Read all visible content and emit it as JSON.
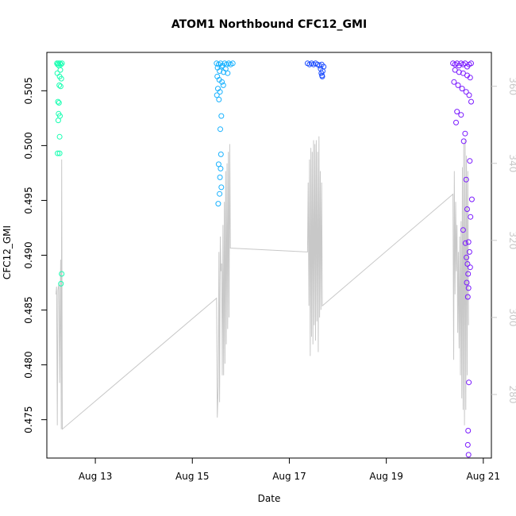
{
  "chart_data": {
    "type": "scatter",
    "title": "ATOM1 Northbound CFC12_GMI",
    "xlabel": "Date",
    "ylabel": "CFC12_GMI",
    "xlim": [
      "2016-08-12T00:00",
      "2016-08-21T04:00"
    ],
    "ylim": [
      0.4715,
      0.5085
    ],
    "x_ticks": [
      "Aug 13",
      "Aug 15",
      "Aug 17",
      "Aug 19",
      "Aug 21"
    ],
    "x_tick_dates": [
      "2016-08-13",
      "2016-08-15",
      "2016-08-17",
      "2016-08-19",
      "2016-08-21"
    ],
    "y_ticks": [
      "0.475",
      "0.480",
      "0.485",
      "0.490",
      "0.495",
      "0.500",
      "0.505"
    ],
    "y_tick_values": [
      0.475,
      0.48,
      0.485,
      0.49,
      0.495,
      0.5,
      0.505
    ],
    "y2_ticks": [
      "280",
      "300",
      "320",
      "340",
      "360"
    ],
    "y2_tick_values": [
      280,
      300,
      320,
      340,
      360
    ],
    "y2lim": [
      263.5,
      368.8
    ],
    "grid": false,
    "line_color": "#c8c8c8",
    "series": [
      {
        "color": "#19ffb2",
        "points": [
          [
            "2016-08-12T05:00",
            0.5075
          ],
          [
            "2016-08-12T05:20",
            0.5074
          ],
          [
            "2016-08-12T05:40",
            0.5075
          ],
          [
            "2016-08-12T06:00",
            0.5073
          ],
          [
            "2016-08-12T06:30",
            0.5075
          ],
          [
            "2016-08-12T07:00",
            0.5074
          ],
          [
            "2016-08-12T07:30",
            0.5075
          ],
          [
            "2016-08-12T05:10",
            0.5066
          ],
          [
            "2016-08-12T06:40",
            0.5069
          ],
          [
            "2016-08-12T06:20",
            0.5063
          ],
          [
            "2016-08-12T07:10",
            0.5061
          ],
          [
            "2016-08-12T06:10",
            0.5055
          ],
          [
            "2016-08-12T06:50",
            0.5054
          ],
          [
            "2016-08-12T05:30",
            0.504
          ],
          [
            "2016-08-12T06:00",
            0.5039
          ],
          [
            "2016-08-12T05:50",
            0.5029
          ],
          [
            "2016-08-12T06:30",
            0.5027
          ],
          [
            "2016-08-12T05:40",
            0.5023
          ],
          [
            "2016-08-12T06:20",
            0.5008
          ],
          [
            "2016-08-12T05:20",
            0.4993
          ],
          [
            "2016-08-12T06:20",
            0.4993
          ],
          [
            "2016-08-12T07:20",
            0.4883
          ],
          [
            "2016-08-12T07:00",
            0.4874
          ]
        ]
      },
      {
        "color": "#19b2ff",
        "points": [
          [
            "2016-08-15T12:00",
            0.5075
          ],
          [
            "2016-08-15T13:00",
            0.5074
          ],
          [
            "2016-08-15T14:00",
            0.5075
          ],
          [
            "2016-08-15T15:00",
            0.5073
          ],
          [
            "2016-08-15T16:00",
            0.5075
          ],
          [
            "2016-08-15T17:00",
            0.5074
          ],
          [
            "2016-08-15T18:00",
            0.5075
          ],
          [
            "2016-08-15T19:00",
            0.5074
          ],
          [
            "2016-08-15T20:00",
            0.5075
          ],
          [
            "2016-08-15T12:30",
            0.5071
          ],
          [
            "2016-08-15T13:30",
            0.5068
          ],
          [
            "2016-08-15T14:30",
            0.5072
          ],
          [
            "2016-08-15T15:30",
            0.5067
          ],
          [
            "2016-08-15T16:30",
            0.507
          ],
          [
            "2016-08-15T17:30",
            0.5066
          ],
          [
            "2016-08-15T12:20",
            0.5063
          ],
          [
            "2016-08-15T13:20",
            0.506
          ],
          [
            "2016-08-15T14:40",
            0.5058
          ],
          [
            "2016-08-15T15:20",
            0.5055
          ],
          [
            "2016-08-15T12:40",
            0.5052
          ],
          [
            "2016-08-15T13:40",
            0.5049
          ],
          [
            "2016-08-15T12:10",
            0.5046
          ],
          [
            "2016-08-15T13:10",
            0.5042
          ],
          [
            "2016-08-15T14:20",
            0.5027
          ],
          [
            "2016-08-15T13:50",
            0.5015
          ],
          [
            "2016-08-15T14:10",
            0.4992
          ],
          [
            "2016-08-15T13:00",
            0.4983
          ],
          [
            "2016-08-15T14:00",
            0.4979
          ],
          [
            "2016-08-15T13:40",
            0.4971
          ],
          [
            "2016-08-15T14:20",
            0.4962
          ],
          [
            "2016-08-15T13:30",
            0.4956
          ],
          [
            "2016-08-15T12:50",
            0.4947
          ]
        ]
      },
      {
        "color": "#1f4fff",
        "points": [
          [
            "2016-08-17T09:00",
            0.5075
          ],
          [
            "2016-08-17T10:00",
            0.5074
          ],
          [
            "2016-08-17T11:00",
            0.5075
          ],
          [
            "2016-08-17T12:00",
            0.5074
          ],
          [
            "2016-08-17T13:00",
            0.5075
          ],
          [
            "2016-08-17T14:00",
            0.5074
          ],
          [
            "2016-08-17T15:00",
            0.5073
          ],
          [
            "2016-08-17T16:00",
            0.5074
          ],
          [
            "2016-08-17T17:00",
            0.5072
          ],
          [
            "2016-08-17T15:30",
            0.507
          ],
          [
            "2016-08-17T16:30",
            0.5068
          ],
          [
            "2016-08-17T15:50",
            0.5066
          ],
          [
            "2016-08-17T16:10",
            0.5064
          ],
          [
            "2016-08-17T16:20",
            0.5063
          ]
        ]
      },
      {
        "color": "#7a19ff",
        "points": [
          [
            "2016-08-20T09:00",
            0.5075
          ],
          [
            "2016-08-20T10:00",
            0.5074
          ],
          [
            "2016-08-20T11:00",
            0.5075
          ],
          [
            "2016-08-20T12:00",
            0.5073
          ],
          [
            "2016-08-20T13:00",
            0.5075
          ],
          [
            "2016-08-20T14:00",
            0.5074
          ],
          [
            "2016-08-20T15:00",
            0.5075
          ],
          [
            "2016-08-20T16:00",
            0.5072
          ],
          [
            "2016-08-20T17:00",
            0.5074
          ],
          [
            "2016-08-20T18:00",
            0.5075
          ],
          [
            "2016-08-20T10:00",
            0.5069
          ],
          [
            "2016-08-20T12:00",
            0.5067
          ],
          [
            "2016-08-20T14:00",
            0.5066
          ],
          [
            "2016-08-20T16:00",
            0.5064
          ],
          [
            "2016-08-20T17:30",
            0.5062
          ],
          [
            "2016-08-20T09:30",
            0.5058
          ],
          [
            "2016-08-20T11:30",
            0.5055
          ],
          [
            "2016-08-20T13:30",
            0.5052
          ],
          [
            "2016-08-20T15:30",
            0.5049
          ],
          [
            "2016-08-20T17:00",
            0.5046
          ],
          [
            "2016-08-20T18:00",
            0.504
          ],
          [
            "2016-08-20T11:00",
            0.5031
          ],
          [
            "2016-08-20T13:00",
            0.5028
          ],
          [
            "2016-08-20T10:30",
            0.5021
          ],
          [
            "2016-08-20T15:00",
            0.5011
          ],
          [
            "2016-08-20T14:20",
            0.5004
          ],
          [
            "2016-08-20T17:20",
            0.4986
          ],
          [
            "2016-08-20T15:30",
            0.4969
          ],
          [
            "2016-08-20T18:20",
            0.4951
          ],
          [
            "2016-08-20T16:00",
            0.4942
          ],
          [
            "2016-08-20T17:40",
            0.4935
          ],
          [
            "2016-08-20T14:00",
            0.4923
          ],
          [
            "2016-08-20T16:40",
            0.4912
          ],
          [
            "2016-08-20T15:10",
            0.4911
          ],
          [
            "2016-08-20T17:10",
            0.4903
          ],
          [
            "2016-08-20T15:40",
            0.4898
          ],
          [
            "2016-08-20T16:10",
            0.4892
          ],
          [
            "2016-08-20T17:30",
            0.4889
          ],
          [
            "2016-08-20T16:30",
            0.4883
          ],
          [
            "2016-08-20T15:50",
            0.4875
          ],
          [
            "2016-08-20T16:40",
            0.487
          ],
          [
            "2016-08-20T16:20",
            0.4862
          ],
          [
            "2016-08-20T16:50",
            0.4784
          ],
          [
            "2016-08-20T16:30",
            0.474
          ],
          [
            "2016-08-20T16:20",
            0.4727
          ],
          [
            "2016-08-20T16:40",
            0.4718
          ]
        ]
      }
    ],
    "line_series": {
      "color": "#c8c8c8",
      "axis": "right",
      "points": [
        [
          "2016-08-12T04:30",
          306
        ],
        [
          "2016-08-12T04:50",
          308
        ],
        [
          "2016-08-12T05:10",
          272
        ],
        [
          "2016-08-12T05:30",
          307
        ],
        [
          "2016-08-12T06:00",
          309
        ],
        [
          "2016-08-12T06:20",
          283
        ],
        [
          "2016-08-12T06:50",
          315
        ],
        [
          "2016-08-12T07:10",
          271
        ],
        [
          "2016-08-12T07:20",
          341
        ],
        [
          "2016-08-12T07:40",
          271
        ],
        [
          "2016-08-15T12:00",
          305
        ],
        [
          "2016-08-15T12:20",
          274
        ],
        [
          "2016-08-15T12:50",
          282
        ],
        [
          "2016-08-15T13:10",
          317
        ],
        [
          "2016-08-15T13:30",
          278
        ],
        [
          "2016-08-15T13:50",
          321
        ],
        [
          "2016-08-15T14:10",
          312
        ],
        [
          "2016-08-15T14:30",
          314
        ],
        [
          "2016-08-15T14:50",
          285
        ],
        [
          "2016-08-15T15:10",
          324
        ],
        [
          "2016-08-15T15:30",
          285
        ],
        [
          "2016-08-15T15:50",
          330
        ],
        [
          "2016-08-15T16:10",
          288
        ],
        [
          "2016-08-15T16:30",
          338
        ],
        [
          "2016-08-15T16:50",
          293
        ],
        [
          "2016-08-15T17:10",
          340
        ],
        [
          "2016-08-15T17:30",
          297
        ],
        [
          "2016-08-15T17:50",
          343
        ],
        [
          "2016-08-15T18:10",
          300
        ],
        [
          "2016-08-15T18:30",
          345
        ],
        [
          "2016-08-15T18:50",
          318
        ],
        [
          "2016-08-17T09:00",
          317
        ],
        [
          "2016-08-17T09:20",
          335
        ],
        [
          "2016-08-17T09:40",
          303
        ],
        [
          "2016-08-17T10:00",
          341
        ],
        [
          "2016-08-17T10:20",
          290
        ],
        [
          "2016-08-17T10:40",
          344
        ],
        [
          "2016-08-17T11:00",
          295
        ],
        [
          "2016-08-17T11:20",
          343
        ],
        [
          "2016-08-17T11:40",
          293
        ],
        [
          "2016-08-17T12:00",
          346
        ],
        [
          "2016-08-17T12:20",
          298
        ],
        [
          "2016-08-17T12:40",
          345
        ],
        [
          "2016-08-17T13:00",
          294
        ],
        [
          "2016-08-17T13:20",
          346
        ],
        [
          "2016-08-17T13:40",
          299
        ],
        [
          "2016-08-17T14:00",
          343
        ],
        [
          "2016-08-17T14:20",
          291
        ],
        [
          "2016-08-17T14:40",
          347
        ],
        [
          "2016-08-17T15:00",
          300
        ],
        [
          "2016-08-17T15:20",
          338
        ],
        [
          "2016-08-17T15:40",
          302
        ],
        [
          "2016-08-17T16:00",
          335
        ],
        [
          "2016-08-17T16:20",
          303
        ],
        [
          "2016-08-20T09:00",
          332
        ],
        [
          "2016-08-20T09:20",
          289
        ],
        [
          "2016-08-20T09:40",
          338
        ],
        [
          "2016-08-20T10:00",
          306
        ],
        [
          "2016-08-20T10:20",
          330
        ],
        [
          "2016-08-20T10:40",
          312
        ],
        [
          "2016-08-20T11:00",
          324
        ],
        [
          "2016-08-20T11:20",
          296
        ],
        [
          "2016-08-20T11:40",
          317
        ],
        [
          "2016-08-20T12:00",
          292
        ],
        [
          "2016-08-20T12:20",
          321
        ],
        [
          "2016-08-20T12:40",
          285
        ],
        [
          "2016-08-20T13:00",
          325
        ],
        [
          "2016-08-20T13:20",
          279
        ],
        [
          "2016-08-20T13:40",
          339
        ],
        [
          "2016-08-20T14:00",
          276
        ],
        [
          "2016-08-20T14:20",
          345
        ],
        [
          "2016-08-20T14:40",
          272
        ],
        [
          "2016-08-20T15:00",
          346
        ],
        [
          "2016-08-20T15:20",
          276
        ],
        [
          "2016-08-20T15:40",
          342
        ],
        [
          "2016-08-20T16:00",
          285
        ],
        [
          "2016-08-20T16:20",
          338
        ],
        [
          "2016-08-20T16:40",
          298
        ]
      ]
    }
  }
}
